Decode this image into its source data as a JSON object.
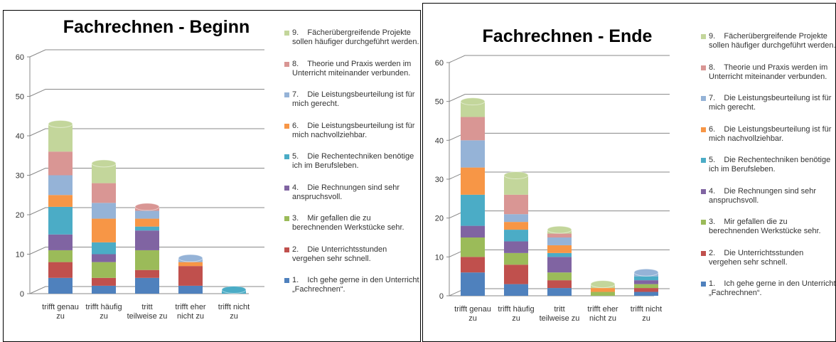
{
  "chart_data": [
    {
      "type": "bar",
      "stacked": true,
      "title": "Fachrechnen - Beginn",
      "categories": [
        "trifft genau zu",
        "trifft häufig zu",
        "tritt teilweise zu",
        "trifft eher nicht zu",
        "trifft nicht zu"
      ],
      "ylim": [
        0,
        60
      ],
      "yticks": [
        0,
        10,
        20,
        30,
        40,
        50,
        60
      ],
      "grid": true,
      "legend": "right",
      "series": [
        {
          "name": "1.    Ich gehe gerne in den Unterricht „Fachrechnen“.",
          "color": "#4f81bd",
          "values": [
            4,
            2,
            4,
            2,
            0
          ]
        },
        {
          "name": "2.    Die Unterrichtsstunden vergehen sehr schnell.",
          "color": "#c0504d",
          "values": [
            4,
            2,
            2,
            5,
            0
          ]
        },
        {
          "name": "3.    Mir gefallen die zu berechnenden Werkstücke sehr.",
          "color": "#9bbb59",
          "values": [
            3,
            4,
            5,
            0,
            0
          ]
        },
        {
          "name": "4.    Die Rechnungen sind sehr anspruchsvoll.",
          "color": "#8064a2",
          "values": [
            4,
            2,
            5,
            0,
            0
          ]
        },
        {
          "name": "5.    Die Rechentechniken benötige ich im Berufsleben.",
          "color": "#4bacc6",
          "values": [
            7,
            3,
            1,
            0,
            1
          ]
        },
        {
          "name": "6.    Die Leistungsbeurteilung ist für mich nachvollziehbar.",
          "color": "#f79646",
          "values": [
            3,
            6,
            2,
            1,
            0
          ]
        },
        {
          "name": "7.    Die Leistungsbeurteilung ist für mich gerecht.",
          "color": "#95b3d7",
          "values": [
            5,
            4,
            2,
            1,
            0
          ]
        },
        {
          "name": "8.    Theorie und Praxis werden im Unterricht miteinander verbunden.",
          "color": "#d99694",
          "values": [
            6,
            5,
            1,
            0,
            0
          ]
        },
        {
          "name": "9.    Fächerübergreifende Projekte sollen häufiger durchgeführt werden.",
          "color": "#c3d69b",
          "values": [
            7,
            5,
            0,
            0,
            0
          ]
        }
      ]
    },
    {
      "type": "bar",
      "stacked": true,
      "title": "Fachrechnen - Ende",
      "categories": [
        "trifft genau zu",
        "trifft häufig zu",
        "tritt teilweise zu",
        "trifft eher nicht zu",
        "trifft nicht zu"
      ],
      "ylim": [
        0,
        60
      ],
      "yticks": [
        0,
        10,
        20,
        30,
        40,
        50,
        60
      ],
      "grid": true,
      "legend": "right",
      "series": [
        {
          "name": "1.    Ich gehe gerne in den Unterricht „Fachrechnen“.",
          "color": "#4f81bd",
          "values": [
            6,
            3,
            2,
            0,
            1
          ]
        },
        {
          "name": "2.    Die Unterrichtsstunden vergehen sehr schnell.",
          "color": "#c0504d",
          "values": [
            4,
            5,
            2,
            0,
            1
          ]
        },
        {
          "name": "3.    Mir gefallen die zu berechnenden Werkstücke sehr.",
          "color": "#9bbb59",
          "values": [
            5,
            3,
            2,
            1,
            1
          ]
        },
        {
          "name": "4.    Die Rechnungen sind sehr anspruchsvoll.",
          "color": "#8064a2",
          "values": [
            3,
            3,
            4,
            0,
            1
          ]
        },
        {
          "name": "5.    Die Rechentechniken benötige ich im Berufsleben.",
          "color": "#4bacc6",
          "values": [
            8,
            3,
            1,
            0,
            1
          ]
        },
        {
          "name": "6.    Die Leistungsbeurteilung ist für mich nachvollziehbar.",
          "color": "#f79646",
          "values": [
            7,
            2,
            2,
            1,
            0
          ]
        },
        {
          "name": "7.    Die Leistungsbeurteilung ist für mich gerecht.",
          "color": "#95b3d7",
          "values": [
            7,
            2,
            2,
            0,
            1
          ]
        },
        {
          "name": "8.    Theorie und Praxis werden im Unterricht miteinander verbunden.",
          "color": "#d99694",
          "values": [
            6,
            5,
            1,
            0,
            0
          ]
        },
        {
          "name": "9.    Fächerübergreifende Projekte sollen häufiger durchgeführt werden.",
          "color": "#c3d69b",
          "values": [
            4,
            5,
            1,
            1,
            0
          ]
        }
      ]
    }
  ]
}
